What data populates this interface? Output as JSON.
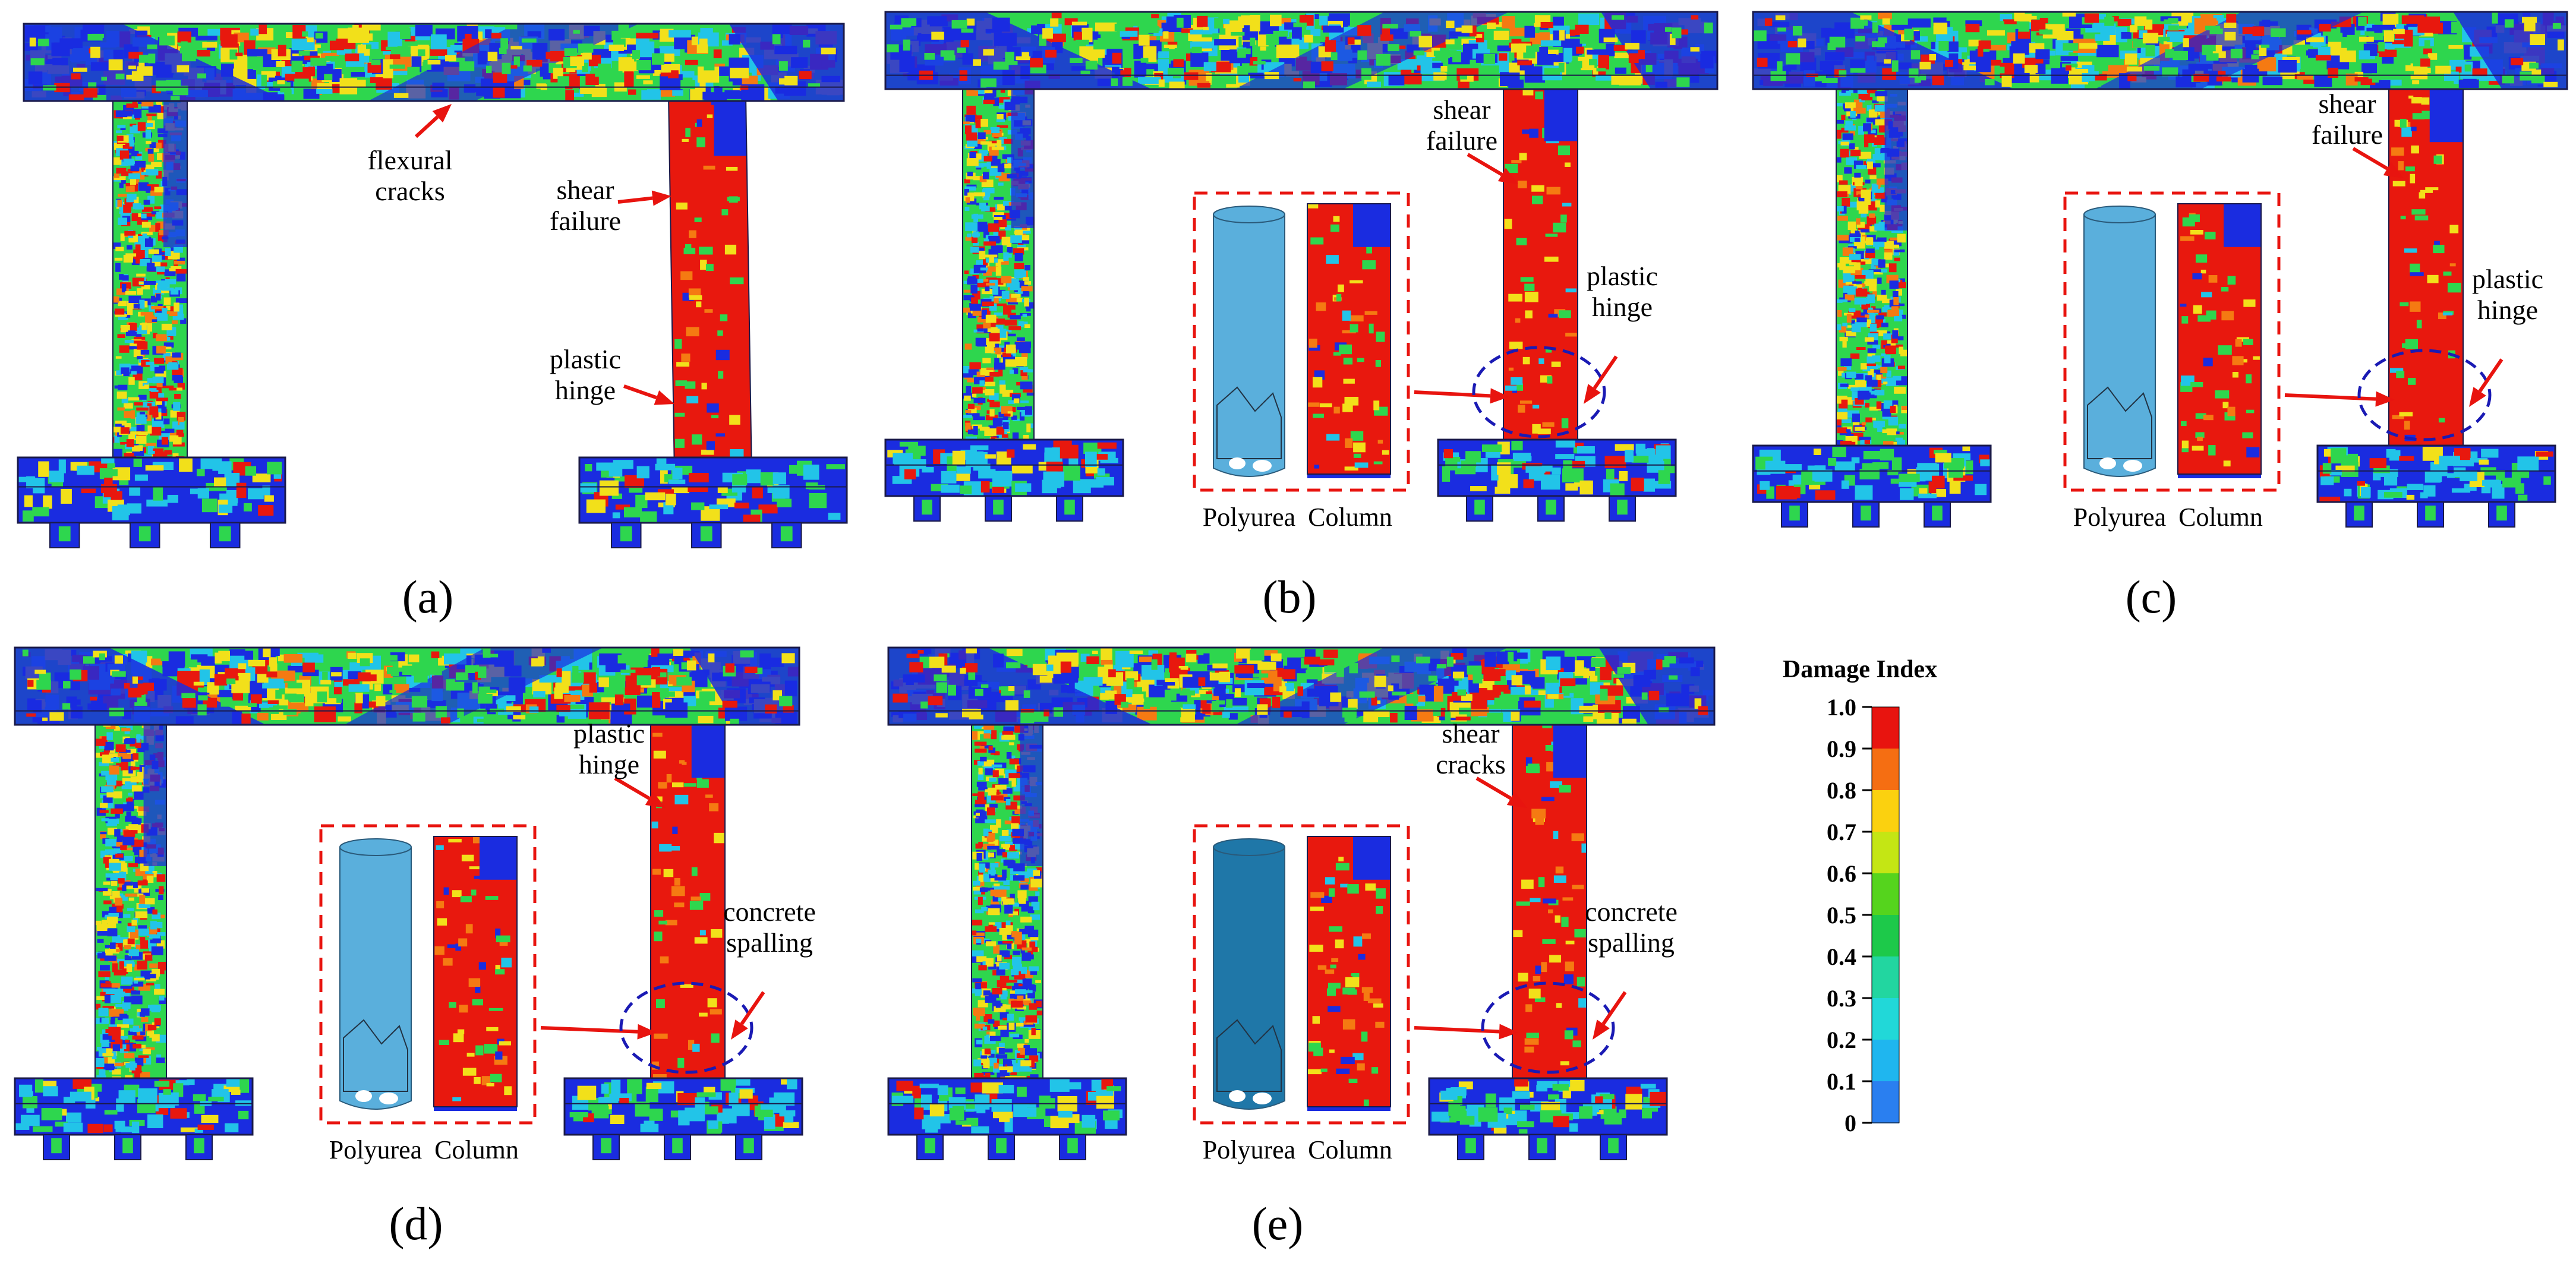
{
  "figure": {
    "panels": [
      {
        "id": "a",
        "label": "(a)",
        "inset": false,
        "annotations": [
          {
            "key": "flexural",
            "lines": [
              "flexural",
              "cracks"
            ]
          },
          {
            "key": "shear",
            "lines": [
              "shear",
              "failure"
            ]
          },
          {
            "key": "hinge",
            "lines": [
              "plastic",
              "hinge"
            ]
          }
        ]
      },
      {
        "id": "b",
        "label": "(b)",
        "inset": true,
        "polyurea_color": "#5aafdc",
        "annotations": [
          {
            "key": "top",
            "lines": [
              "shear",
              "failure"
            ]
          },
          {
            "key": "bottom",
            "lines": [
              "plastic",
              "hinge"
            ]
          }
        ]
      },
      {
        "id": "c",
        "label": "(c)",
        "inset": true,
        "polyurea_color": "#5aafdc",
        "annotations": [
          {
            "key": "top",
            "lines": [
              "shear",
              "failure"
            ]
          },
          {
            "key": "bottom",
            "lines": [
              "plastic",
              "hinge"
            ]
          }
        ]
      },
      {
        "id": "d",
        "label": "(d)",
        "inset": true,
        "polyurea_color": "#5aafdc",
        "annotations": [
          {
            "key": "top",
            "lines": [
              "plastic",
              "hinge"
            ]
          },
          {
            "key": "bottom",
            "lines": [
              "concrete",
              "spalling"
            ]
          }
        ]
      },
      {
        "id": "e",
        "label": "(e)",
        "inset": true,
        "polyurea_color": "#1f77a8",
        "annotations": [
          {
            "key": "top",
            "lines": [
              "shear",
              "cracks"
            ]
          },
          {
            "key": "bottom",
            "lines": [
              "concrete",
              "spalling"
            ]
          }
        ]
      }
    ],
    "inset_captions": {
      "left": "Polyurea",
      "right": "Column"
    },
    "legend": {
      "title": "Damage Index",
      "ticks": [
        "1.0",
        "0.9",
        "0.8",
        "0.7",
        "0.6",
        "0.5",
        "0.4",
        "0.3",
        "0.2",
        "0.1",
        "0"
      ],
      "colors": [
        "#e8140f",
        "#f56e12",
        "#fbd10f",
        "#c4e614",
        "#55d41d",
        "#1dc94a",
        "#22d6a0",
        "#21d8d8",
        "#1fb6ef",
        "#2a7ff0",
        "#1a22d8"
      ]
    },
    "palette": {
      "blue": "#1a2ce0",
      "cyan": "#22c4e8",
      "green": "#2ed64e",
      "yellow": "#f2e01a",
      "red": "#e8180e",
      "orange": "#f57a12",
      "arrow": "#e8140f",
      "dash_red": "#e8140f",
      "dash_blue": "#1a1ab4"
    }
  }
}
